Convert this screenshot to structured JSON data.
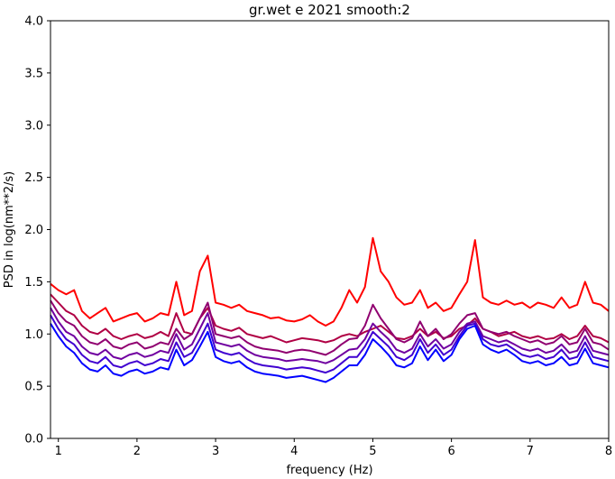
{
  "chart_data": {
    "type": "line",
    "title": "gr.wet e 2021 smooth:2",
    "xlabel": "frequency (Hz)",
    "ylabel": "PSD in log(nm**2/s)",
    "xlim": [
      0.9,
      8.0
    ],
    "ylim": [
      0.0,
      4.0
    ],
    "xticks": [
      1,
      2,
      3,
      4,
      5,
      6,
      7,
      8
    ],
    "xtick_labels": [
      "1",
      "2",
      "3",
      "4",
      "5",
      "6",
      "7",
      "8"
    ],
    "yticks": [
      0.0,
      0.5,
      1.0,
      1.5,
      2.0,
      2.5,
      3.0,
      3.5,
      4.0
    ],
    "ytick_labels": [
      "0.0",
      "0.5",
      "1.0",
      "1.5",
      "2.0",
      "2.5",
      "3.0",
      "3.5",
      "4.0"
    ],
    "grid": false,
    "legend": "none",
    "x": [
      0.9,
      1.0,
      1.1,
      1.2,
      1.3,
      1.4,
      1.5,
      1.6,
      1.7,
      1.8,
      1.9,
      2.0,
      2.1,
      2.2,
      2.3,
      2.4,
      2.5,
      2.6,
      2.7,
      2.8,
      2.9,
      3.0,
      3.1,
      3.2,
      3.3,
      3.4,
      3.5,
      3.6,
      3.7,
      3.8,
      3.9,
      4.0,
      4.1,
      4.2,
      4.3,
      4.4,
      4.5,
      4.6,
      4.7,
      4.8,
      4.9,
      5.0,
      5.1,
      5.2,
      5.3,
      5.4,
      5.5,
      5.6,
      5.7,
      5.8,
      5.9,
      6.0,
      6.1,
      6.2,
      6.3,
      6.4,
      6.5,
      6.6,
      6.7,
      6.8,
      6.9,
      7.0,
      7.1,
      7.2,
      7.3,
      7.4,
      7.5,
      7.6,
      7.7,
      7.8,
      7.9,
      8.0
    ],
    "series": [
      {
        "color": "#ff0000",
        "values": [
          1.48,
          1.42,
          1.38,
          1.42,
          1.22,
          1.15,
          1.2,
          1.25,
          1.12,
          1.15,
          1.18,
          1.2,
          1.12,
          1.15,
          1.2,
          1.18,
          1.5,
          1.18,
          1.22,
          1.6,
          1.75,
          1.3,
          1.28,
          1.25,
          1.28,
          1.22,
          1.2,
          1.18,
          1.15,
          1.16,
          1.13,
          1.12,
          1.14,
          1.18,
          1.12,
          1.08,
          1.12,
          1.25,
          1.42,
          1.3,
          1.45,
          1.92,
          1.6,
          1.5,
          1.35,
          1.28,
          1.3,
          1.42,
          1.25,
          1.3,
          1.22,
          1.25,
          1.38,
          1.5,
          1.9,
          1.35,
          1.3,
          1.28,
          1.32,
          1.28,
          1.3,
          1.25,
          1.3,
          1.28,
          1.25,
          1.35,
          1.25,
          1.28,
          1.5,
          1.3,
          1.28,
          1.22
        ]
      },
      {
        "color": "#b00044",
        "values": [
          1.38,
          1.3,
          1.22,
          1.18,
          1.08,
          1.02,
          1.0,
          1.05,
          0.98,
          0.95,
          0.98,
          1.0,
          0.96,
          0.98,
          1.02,
          0.98,
          1.2,
          1.02,
          1.0,
          1.15,
          1.25,
          1.08,
          1.05,
          1.03,
          1.06,
          1.0,
          0.98,
          0.96,
          0.98,
          0.95,
          0.92,
          0.94,
          0.96,
          0.95,
          0.94,
          0.92,
          0.94,
          0.98,
          1.0,
          0.98,
          1.02,
          1.05,
          1.08,
          1.02,
          0.96,
          0.95,
          0.98,
          1.05,
          0.98,
          1.02,
          0.96,
          0.98,
          1.05,
          1.08,
          1.15,
          1.05,
          1.02,
          0.98,
          1.0,
          1.02,
          0.98,
          0.96,
          0.98,
          0.95,
          0.96,
          1.0,
          0.95,
          0.98,
          1.08,
          0.98,
          0.96,
          0.92
        ]
      },
      {
        "color": "#900070",
        "values": [
          1.32,
          1.2,
          1.12,
          1.08,
          0.98,
          0.92,
          0.9,
          0.95,
          0.88,
          0.86,
          0.9,
          0.92,
          0.86,
          0.88,
          0.92,
          0.9,
          1.05,
          0.95,
          1.0,
          1.15,
          1.3,
          1.0,
          0.98,
          0.96,
          0.98,
          0.92,
          0.88,
          0.86,
          0.85,
          0.84,
          0.82,
          0.84,
          0.85,
          0.84,
          0.82,
          0.8,
          0.84,
          0.9,
          0.95,
          0.96,
          1.08,
          1.28,
          1.15,
          1.05,
          0.95,
          0.92,
          0.96,
          1.12,
          0.98,
          1.05,
          0.95,
          1.0,
          1.1,
          1.18,
          1.2,
          1.05,
          1.02,
          1.0,
          1.02,
          0.98,
          0.95,
          0.92,
          0.94,
          0.9,
          0.92,
          0.98,
          0.9,
          0.92,
          1.05,
          0.92,
          0.9,
          0.85
        ]
      },
      {
        "color": "#7000a0",
        "values": [
          1.25,
          1.12,
          1.02,
          0.98,
          0.88,
          0.82,
          0.8,
          0.85,
          0.78,
          0.76,
          0.8,
          0.82,
          0.78,
          0.8,
          0.84,
          0.82,
          1.0,
          0.85,
          0.9,
          1.05,
          1.2,
          0.92,
          0.9,
          0.88,
          0.9,
          0.84,
          0.8,
          0.78,
          0.77,
          0.76,
          0.74,
          0.75,
          0.76,
          0.75,
          0.74,
          0.72,
          0.75,
          0.8,
          0.85,
          0.86,
          0.95,
          1.1,
          1.02,
          0.95,
          0.85,
          0.82,
          0.86,
          1.0,
          0.88,
          0.95,
          0.86,
          0.9,
          1.02,
          1.1,
          1.12,
          0.98,
          0.95,
          0.92,
          0.94,
          0.9,
          0.86,
          0.84,
          0.86,
          0.82,
          0.84,
          0.9,
          0.82,
          0.84,
          0.98,
          0.84,
          0.82,
          0.8
        ]
      },
      {
        "color": "#4000d0",
        "values": [
          1.18,
          1.05,
          0.95,
          0.9,
          0.8,
          0.74,
          0.72,
          0.78,
          0.7,
          0.68,
          0.72,
          0.74,
          0.7,
          0.72,
          0.76,
          0.74,
          0.92,
          0.78,
          0.82,
          0.95,
          1.1,
          0.85,
          0.82,
          0.8,
          0.82,
          0.76,
          0.72,
          0.7,
          0.69,
          0.68,
          0.66,
          0.67,
          0.68,
          0.67,
          0.65,
          0.63,
          0.66,
          0.72,
          0.78,
          0.78,
          0.88,
          1.02,
          0.95,
          0.88,
          0.78,
          0.75,
          0.8,
          0.95,
          0.82,
          0.9,
          0.8,
          0.85,
          0.98,
          1.08,
          1.1,
          0.95,
          0.9,
          0.88,
          0.9,
          0.85,
          0.8,
          0.78,
          0.8,
          0.76,
          0.78,
          0.85,
          0.76,
          0.78,
          0.92,
          0.78,
          0.76,
          0.74
        ]
      },
      {
        "color": "#0000ff",
        "values": [
          1.1,
          0.98,
          0.88,
          0.82,
          0.72,
          0.66,
          0.64,
          0.7,
          0.62,
          0.6,
          0.64,
          0.66,
          0.62,
          0.64,
          0.68,
          0.66,
          0.85,
          0.7,
          0.75,
          0.88,
          1.02,
          0.78,
          0.74,
          0.72,
          0.74,
          0.68,
          0.64,
          0.62,
          0.61,
          0.6,
          0.58,
          0.59,
          0.6,
          0.58,
          0.56,
          0.54,
          0.58,
          0.64,
          0.7,
          0.7,
          0.8,
          0.95,
          0.88,
          0.8,
          0.7,
          0.68,
          0.72,
          0.88,
          0.75,
          0.85,
          0.74,
          0.8,
          0.95,
          1.05,
          1.08,
          0.9,
          0.85,
          0.82,
          0.85,
          0.8,
          0.74,
          0.72,
          0.74,
          0.7,
          0.72,
          0.78,
          0.7,
          0.72,
          0.86,
          0.72,
          0.7,
          0.68
        ]
      }
    ]
  }
}
